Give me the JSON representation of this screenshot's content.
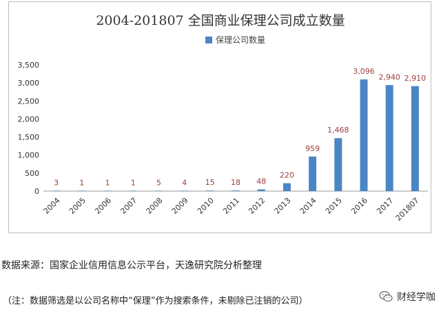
{
  "chart_data": {
    "type": "bar",
    "title": "2004-201807 全国商业保理公司成立数量",
    "categories": [
      "2004",
      "2005",
      "2006",
      "2007",
      "2008",
      "2009",
      "2010",
      "2011",
      "2012",
      "2013",
      "2014",
      "2015",
      "2016",
      "2017",
      "201807"
    ],
    "series": [
      {
        "name": "保理公司数量",
        "values": [
          3,
          1,
          1,
          1,
          5,
          4,
          15,
          18,
          48,
          220,
          959,
          1468,
          3096,
          2940,
          2910
        ],
        "labels": [
          "3",
          "1",
          "1",
          "1",
          "5",
          "4",
          "15",
          "18",
          "48",
          "220",
          "959",
          "1,468",
          "3,096",
          "2,940",
          "2,910"
        ],
        "color": "#4a86c5"
      }
    ],
    "ylim": [
      0,
      3500
    ],
    "yticks": [
      0,
      500,
      1000,
      1500,
      2000,
      2500,
      3000,
      3500
    ],
    "ytick_labels": [
      "0",
      "500",
      "1,000",
      "1,500",
      "2,000",
      "2,500",
      "3,000",
      "3,500"
    ],
    "grid": false,
    "legend_position": "top-center",
    "label_color": "#9c3b3f"
  },
  "notes": {
    "source": "数据来源：国家企业信用信息公示平台，天逸研究院分析整理",
    "filter": "（注：数据筛选是以公司名称中“保理”作为搜索条件，未剔除已注销的公司）"
  },
  "brand": {
    "name": "财经学咖",
    "icon": "wechat-icon"
  }
}
